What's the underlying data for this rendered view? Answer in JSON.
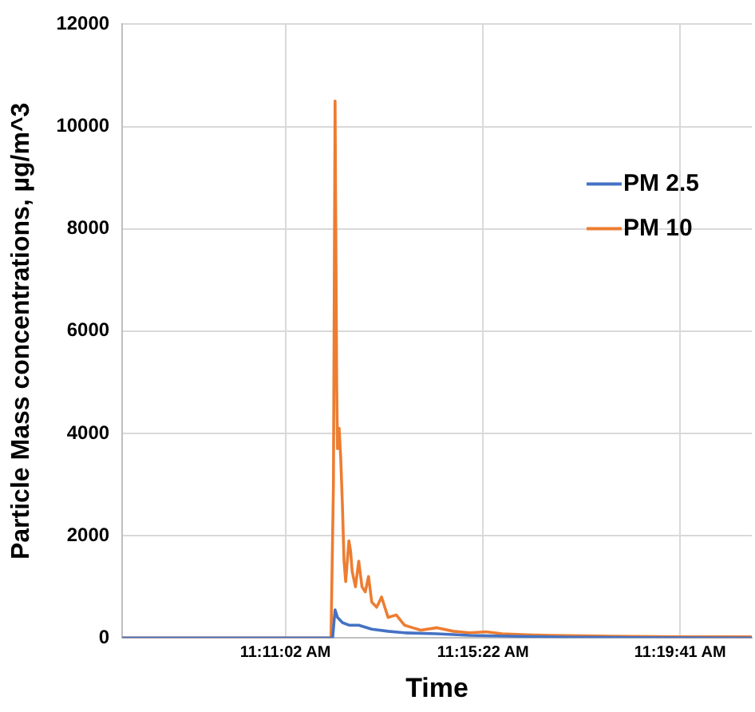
{
  "chart_data": {
    "type": "line",
    "xlabel": "Time",
    "ylabel": "Particle Mass concentrations, µg/m^3",
    "xlim": [
      11.12432,
      11.35426
    ],
    "xticks": [
      {
        "value": 11.18389,
        "label": "11:11:02 AM"
      },
      {
        "value": 11.25611,
        "label": "11:15:22 AM"
      },
      {
        "value": 11.32806,
        "label": "11:19:41 AM"
      }
    ],
    "ylim": [
      0,
      12000
    ],
    "yticks": [
      0,
      2000,
      4000,
      6000,
      8000,
      10000,
      12000
    ],
    "grid": true,
    "legend": "top right",
    "marker": "none",
    "line_style": "solid",
    "series": [
      {
        "name": "PM 2.5",
        "color": "#4472c4",
        "x": [
          11.12432,
          11.20117,
          11.20206,
          11.20295,
          11.20474,
          11.20712,
          11.2107,
          11.21546,
          11.22142,
          11.22738,
          11.23929,
          11.2512,
          11.26908,
          11.28695,
          11.31077,
          11.35426
        ],
        "values": [
          0,
          0,
          550,
          400,
          300,
          250,
          250,
          170,
          130,
          100,
          80,
          50,
          30,
          15,
          5,
          0
        ]
      },
      {
        "name": "PM 10",
        "color": "#ed7d31",
        "x": [
          11.12432,
          11.20057,
          11.20146,
          11.20206,
          11.20265,
          11.20295,
          11.20355,
          11.20414,
          11.20474,
          11.20534,
          11.20593,
          11.20712,
          11.20772,
          11.20831,
          11.20951,
          11.2107,
          11.21189,
          11.21308,
          11.21427,
          11.21546,
          11.21725,
          11.21904,
          11.22142,
          11.2244,
          11.22738,
          11.23036,
          11.23333,
          11.23929,
          11.24525,
          11.2512,
          11.25716,
          11.26312,
          11.27205,
          11.28099,
          11.2929,
          11.31077,
          11.32865,
          11.35426
        ],
        "values": [
          0,
          0,
          3000,
          10500,
          5000,
          3700,
          4100,
          3500,
          2600,
          1500,
          1100,
          1900,
          1700,
          1300,
          1000,
          1500,
          1000,
          900,
          1200,
          700,
          600,
          800,
          400,
          450,
          250,
          200,
          150,
          200,
          130,
          100,
          120,
          80,
          60,
          50,
          40,
          30,
          20,
          20
        ]
      }
    ]
  }
}
